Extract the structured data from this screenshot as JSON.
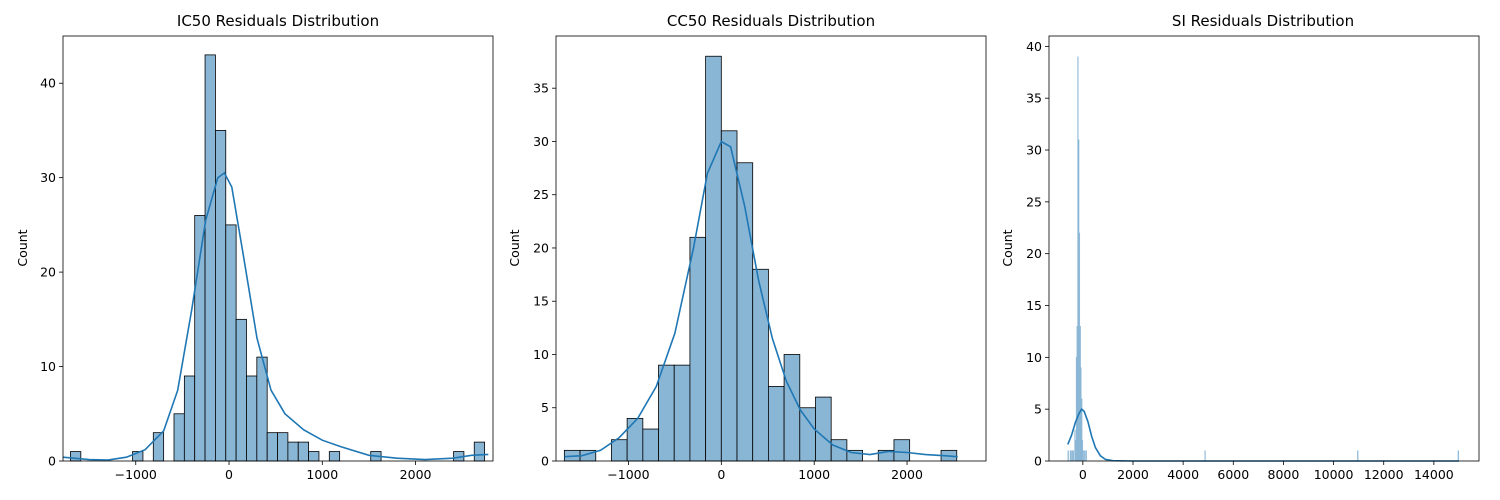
{
  "colors": {
    "bar": "#8ab6d6",
    "bar_edge": "#000000",
    "kde": "#1f77b4",
    "axis": "#000000"
  },
  "chart_data": [
    {
      "type": "bar",
      "title": "IC50 Residuals Distribution",
      "xlabel": "",
      "ylabel": "Count",
      "xlim": [
        -1780,
        2830
      ],
      "ylim": [
        0,
        45
      ],
      "xticks": [
        -1000,
        0,
        1000,
        2000
      ],
      "yticks": [
        0,
        10,
        20,
        30,
        40
      ],
      "bin_edges": [
        -1700,
        -1589,
        -1478,
        -1367,
        -1256,
        -1145,
        -1034,
        -923,
        -812,
        -701,
        -590,
        -479,
        -368,
        -257,
        -146,
        -35,
        76,
        187,
        298,
        409,
        520,
        631,
        742,
        853,
        964,
        1075,
        1186,
        1297,
        1408,
        1519,
        1630,
        1741,
        1852,
        1963,
        2074,
        2185,
        2296,
        2407,
        2518,
        2629,
        2740
      ],
      "values": [
        1,
        0,
        0,
        0,
        0,
        0,
        1,
        0,
        3,
        0,
        5,
        9,
        26,
        43,
        35,
        25,
        15,
        9,
        11,
        3,
        3,
        2,
        2,
        1,
        0,
        1,
        0,
        0,
        0,
        1,
        0,
        0,
        0,
        0,
        0,
        0,
        0,
        1,
        0,
        2
      ],
      "kde": [
        [
          -1780,
          0.4
        ],
        [
          -1500,
          0.15
        ],
        [
          -1300,
          0.1
        ],
        [
          -1100,
          0.4
        ],
        [
          -900,
          1.2
        ],
        [
          -700,
          3.2
        ],
        [
          -550,
          7.5
        ],
        [
          -400,
          16
        ],
        [
          -250,
          25.5
        ],
        [
          -120,
          30
        ],
        [
          -50,
          30.5
        ],
        [
          30,
          29
        ],
        [
          150,
          22
        ],
        [
          300,
          13
        ],
        [
          450,
          7.5
        ],
        [
          600,
          5
        ],
        [
          800,
          3.3
        ],
        [
          1000,
          2.2
        ],
        [
          1200,
          1.5
        ],
        [
          1500,
          0.6
        ],
        [
          1800,
          0.3
        ],
        [
          2100,
          0.15
        ],
        [
          2400,
          0.3
        ],
        [
          2600,
          0.6
        ],
        [
          2780,
          0.7
        ]
      ]
    },
    {
      "type": "bar",
      "title": "CC50 Residuals Distribution",
      "xlabel": "",
      "ylabel": "Count",
      "xlim": [
        -1780,
        2850
      ],
      "ylim": [
        0,
        39.9
      ],
      "xticks": [
        -1000,
        0,
        1000,
        2000
      ],
      "yticks": [
        0,
        5,
        10,
        15,
        20,
        25,
        30,
        35
      ],
      "bin_edges": [
        -1690,
        -1521,
        -1352,
        -1183,
        -1014,
        -845,
        -676,
        -507,
        -338,
        -169,
        0,
        169,
        338,
        507,
        676,
        845,
        1014,
        1183,
        1352,
        1521,
        1690,
        1859,
        2028,
        2197,
        2366,
        2535
      ],
      "values": [
        1,
        1,
        0,
        2,
        4,
        3,
        9,
        9,
        21,
        38,
        31,
        28,
        18,
        7,
        10,
        5,
        6,
        2,
        1,
        0,
        1,
        2,
        0,
        0,
        1,
        1
      ],
      "kde": [
        [
          -1690,
          0.4
        ],
        [
          -1500,
          0.5
        ],
        [
          -1300,
          1
        ],
        [
          -1100,
          2.2
        ],
        [
          -900,
          4
        ],
        [
          -700,
          7
        ],
        [
          -500,
          12
        ],
        [
          -300,
          20
        ],
        [
          -150,
          27
        ],
        [
          0,
          30
        ],
        [
          100,
          29.5
        ],
        [
          250,
          24
        ],
        [
          400,
          17
        ],
        [
          550,
          11.5
        ],
        [
          700,
          7.5
        ],
        [
          850,
          4.8
        ],
        [
          1000,
          3
        ],
        [
          1200,
          1.5
        ],
        [
          1400,
          0.8
        ],
        [
          1600,
          0.6
        ],
        [
          1800,
          0.9
        ],
        [
          2000,
          0.8
        ],
        [
          2200,
          0.6
        ],
        [
          2400,
          0.5
        ],
        [
          2545,
          0.4
        ]
      ]
    },
    {
      "type": "bar",
      "title": "SI Residuals Distribution",
      "xlabel": "",
      "ylabel": "Count",
      "xlim": [
        -1350,
        15800
      ],
      "ylim": [
        0,
        41
      ],
      "xticks": [
        0,
        2000,
        4000,
        6000,
        8000,
        10000,
        12000,
        14000
      ],
      "yticks": [
        0,
        5,
        10,
        15,
        20,
        25,
        30,
        35,
        40
      ],
      "bin_edges": [
        -600,
        -570,
        -540,
        -510,
        -480,
        -450,
        -420,
        -390,
        -360,
        -330,
        -300,
        -270,
        -240,
        -210,
        -180,
        -150,
        -120,
        -90,
        -60,
        -30,
        0,
        30,
        60,
        90,
        120,
        150,
        4860,
        4890,
        10950,
        10980,
        14960,
        14990
      ],
      "values": [
        1,
        0,
        0,
        1,
        1,
        0,
        1,
        1,
        0,
        3,
        2,
        10,
        13,
        39,
        31,
        22,
        13,
        9,
        6,
        2,
        1,
        0,
        1,
        0,
        1,
        0,
        1,
        0,
        1,
        0,
        1
      ],
      "kde": [
        [
          -600,
          1.6
        ],
        [
          -450,
          2.5
        ],
        [
          -300,
          3.7
        ],
        [
          -150,
          4.6
        ],
        [
          -50,
          5
        ],
        [
          50,
          4.8
        ],
        [
          200,
          3.8
        ],
        [
          350,
          2.4
        ],
        [
          500,
          1.3
        ],
        [
          700,
          0.5
        ],
        [
          900,
          0.15
        ],
        [
          1200,
          0.03
        ],
        [
          2000,
          0
        ],
        [
          15000,
          0
        ]
      ]
    }
  ]
}
